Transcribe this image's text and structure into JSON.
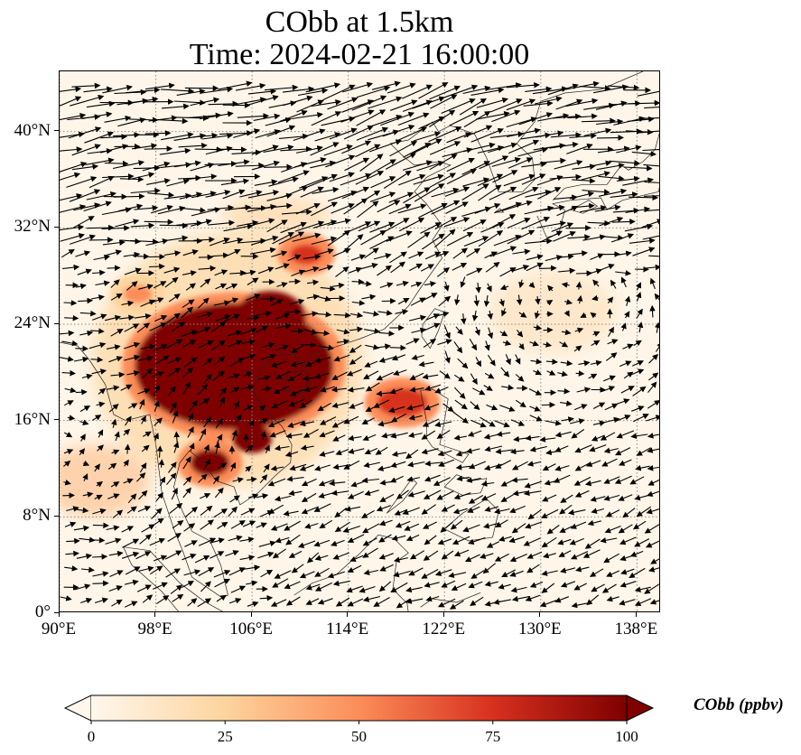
{
  "title_line1": "CObb at 1.5km",
  "title_line2": "Time: 2024-02-21 16:00:00",
  "map": {
    "projection": "plate-carree",
    "lon_range": [
      90,
      140
    ],
    "lat_range": [
      0,
      45
    ],
    "lon_ticks": [
      {
        "value": 90,
        "label": "90°E"
      },
      {
        "value": 98,
        "label": "98°E"
      },
      {
        "value": 106,
        "label": "106°E"
      },
      {
        "value": 114,
        "label": "114°E"
      },
      {
        "value": 122,
        "label": "122°E"
      },
      {
        "value": 130,
        "label": "130°E"
      },
      {
        "value": 138,
        "label": "138°E"
      }
    ],
    "lat_ticks": [
      {
        "value": 0,
        "label": "0°"
      },
      {
        "value": 8,
        "label": "8°N"
      },
      {
        "value": 16,
        "label": "16°N"
      },
      {
        "value": 24,
        "label": "24°N"
      },
      {
        "value": 32,
        "label": "32°N"
      },
      {
        "value": 40,
        "label": "40°N"
      }
    ],
    "gridlines": "dotted",
    "field": "CObb",
    "field_units": "ppbv",
    "overlay": "wind vectors (arrows)",
    "high_concentration_regions": [
      {
        "name": "Indochina / South China plume",
        "lon_center": 104.5,
        "lat_center": 20.5,
        "level_ppbv": 100
      },
      {
        "name": "Luzon Strait plume",
        "lon_center": 118.5,
        "lat_center": 17.5,
        "level_ppbv": 85
      },
      {
        "name": "Central China patch",
        "lon_center": 110.5,
        "lat_center": 29.8,
        "level_ppbv": 70
      },
      {
        "name": "Myanmar patch",
        "lon_center": 96.5,
        "lat_center": 26.5,
        "level_ppbv": 60
      },
      {
        "name": "Southern Indochina patch",
        "lon_center": 102.5,
        "lat_center": 12.5,
        "level_ppbv": 90
      }
    ]
  },
  "colorbar": {
    "colormap": "OrRd",
    "colors": [
      "#fff7ec",
      "#fdd49e",
      "#fc8d59",
      "#d7301f",
      "#7f0000"
    ],
    "min": 0,
    "max": 100,
    "extend": "both",
    "ticks": [
      {
        "value": 0,
        "label": "0"
      },
      {
        "value": 25,
        "label": "25"
      },
      {
        "value": 50,
        "label": "50"
      },
      {
        "value": 75,
        "label": "75"
      },
      {
        "value": 100,
        "label": "100"
      }
    ],
    "label": "CObb (ppbv)"
  }
}
